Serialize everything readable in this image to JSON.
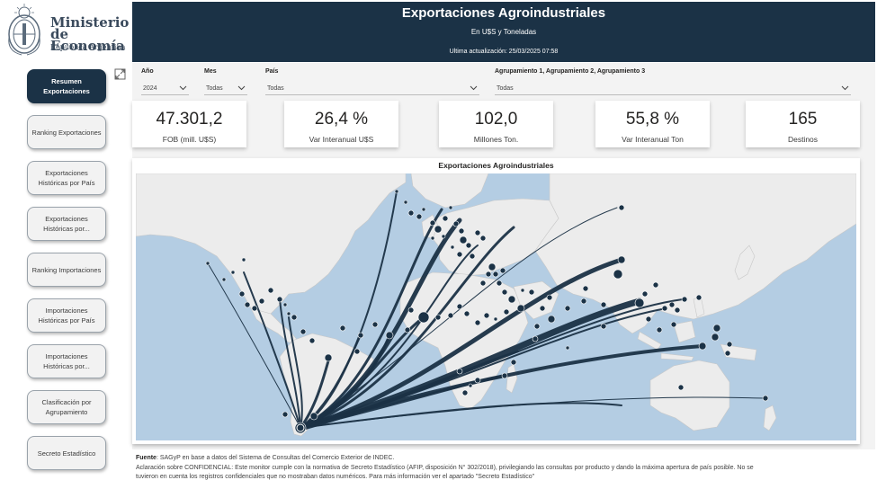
{
  "logo": {
    "line1": "Ministerio",
    "line2": "de Economía",
    "line3": "República Argentina"
  },
  "nav": [
    {
      "label_lines": [
        "Resumen",
        "Exportaciones"
      ],
      "active": true
    },
    {
      "label_lines": [
        "Ranking Exportaciones"
      ],
      "active": false
    },
    {
      "label_lines": [
        "Exportaciones",
        "Históricas por País"
      ],
      "active": false
    },
    {
      "label_lines": [
        "Exportaciones",
        "Históricas por..."
      ],
      "active": false
    },
    {
      "label_lines": [
        "Ranking Importaciones"
      ],
      "active": false
    },
    {
      "label_lines": [
        "Importaciones",
        "Históricas por País"
      ],
      "active": false
    },
    {
      "label_lines": [
        "Importaciones",
        "Históricas por..."
      ],
      "active": false
    },
    {
      "label_lines": [
        "Clasificación por",
        "Agrupamiento"
      ],
      "active": false
    },
    {
      "label_lines": [
        "Secreto Estadístico"
      ],
      "active": false
    }
  ],
  "header": {
    "title": "Exportaciones Agroindustriales",
    "subtitle": "En U$S y Toneladas",
    "updated": "Ultima actualización: 25/03/2025 07:58"
  },
  "filters": {
    "year_label": "Año",
    "year_value": "2024",
    "month_label": "Mes",
    "month_value": "Todas",
    "country_label": "País",
    "country_value": "Todas",
    "group_label": "Agrupamiento 1, Agrupamiento 2, Agrupamiento 3",
    "group_value": "Todas"
  },
  "kpis": [
    {
      "value": "47.301,2",
      "label": "FOB (mill. U$S)"
    },
    {
      "value": "26,4 %",
      "label": "Var Interanual U$S"
    },
    {
      "value": "102,0",
      "label": "Millones Ton."
    },
    {
      "value": "55,8 %",
      "label": "Var Interanual Ton"
    },
    {
      "value": "165",
      "label": "Destinos"
    }
  ],
  "map": {
    "title": "Exportaciones Agroindustriales",
    "colors": {
      "water": "#b4cde3",
      "land": "#ececec",
      "flow": "#1b3246"
    }
  },
  "footer": {
    "source_label": "Fuente",
    "source_text": ": SAGyP en base a datos del Sistema de Consultas del Comercio Exterior de INDEC.",
    "note_line1": "Aclaración sobre CONFIDENCIAL: Este monitor cumple con la normativa de Secreto Estadístico (AFIP, disposición N° 302/2018),  privilegiando las consultas por producto y dando la máxima apertura de país posible. No se",
    "note_line2": "tuvieron en cuenta los registros confidenciales que no mostraban datos numéricos. Para más información ver el apartado \"Secreto Estadístico\""
  }
}
